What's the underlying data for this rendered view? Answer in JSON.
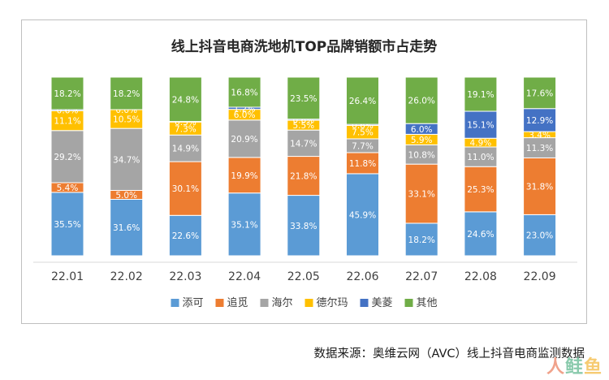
{
  "chart_data": {
    "type": "bar",
    "stacked": true,
    "percent_stacked": true,
    "title": "线上抖音电商洗地机TOP品牌销额市占走势",
    "categories": [
      "22.01",
      "22.02",
      "22.03",
      "22.04",
      "22.05",
      "22.06",
      "22.07",
      "22.08",
      "22.09"
    ],
    "series": [
      {
        "name": "添可",
        "color": "#5b9bd5",
        "values": [
          35.5,
          31.6,
          22.6,
          35.1,
          33.8,
          45.9,
          18.2,
          24.6,
          23.0
        ]
      },
      {
        "name": "追觅",
        "color": "#ed7d31",
        "values": [
          5.4,
          5.0,
          30.1,
          19.9,
          21.8,
          11.8,
          33.1,
          25.3,
          31.8
        ]
      },
      {
        "name": "海尔",
        "color": "#a5a5a5",
        "values": [
          29.2,
          34.7,
          14.9,
          20.9,
          14.7,
          7.7,
          10.8,
          11.0,
          11.3
        ]
      },
      {
        "name": "德尔玛",
        "color": "#ffc000",
        "values": [
          11.1,
          10.5,
          7.3,
          6.0,
          5.5,
          7.5,
          5.9,
          4.9,
          3.4
        ]
      },
      {
        "name": "美菱",
        "color": "#4472c4",
        "values": [
          0.6,
          0.0,
          0.3,
          1.2,
          0.6,
          0.6,
          6.0,
          15.1,
          12.9
        ]
      },
      {
        "name": "其他",
        "color": "#70ad47",
        "values": [
          18.2,
          18.2,
          24.8,
          16.8,
          23.5,
          26.4,
          26.0,
          19.1,
          17.6
        ]
      }
    ],
    "value_suffix": "%",
    "legend_position": "bottom",
    "grid": false
  },
  "source_note": "数据来源：奥维云网（AVC）线上抖音电商监测数据",
  "watermark": {
    "part1": "人",
    "part2": "鲑",
    "part3": "鱼"
  }
}
